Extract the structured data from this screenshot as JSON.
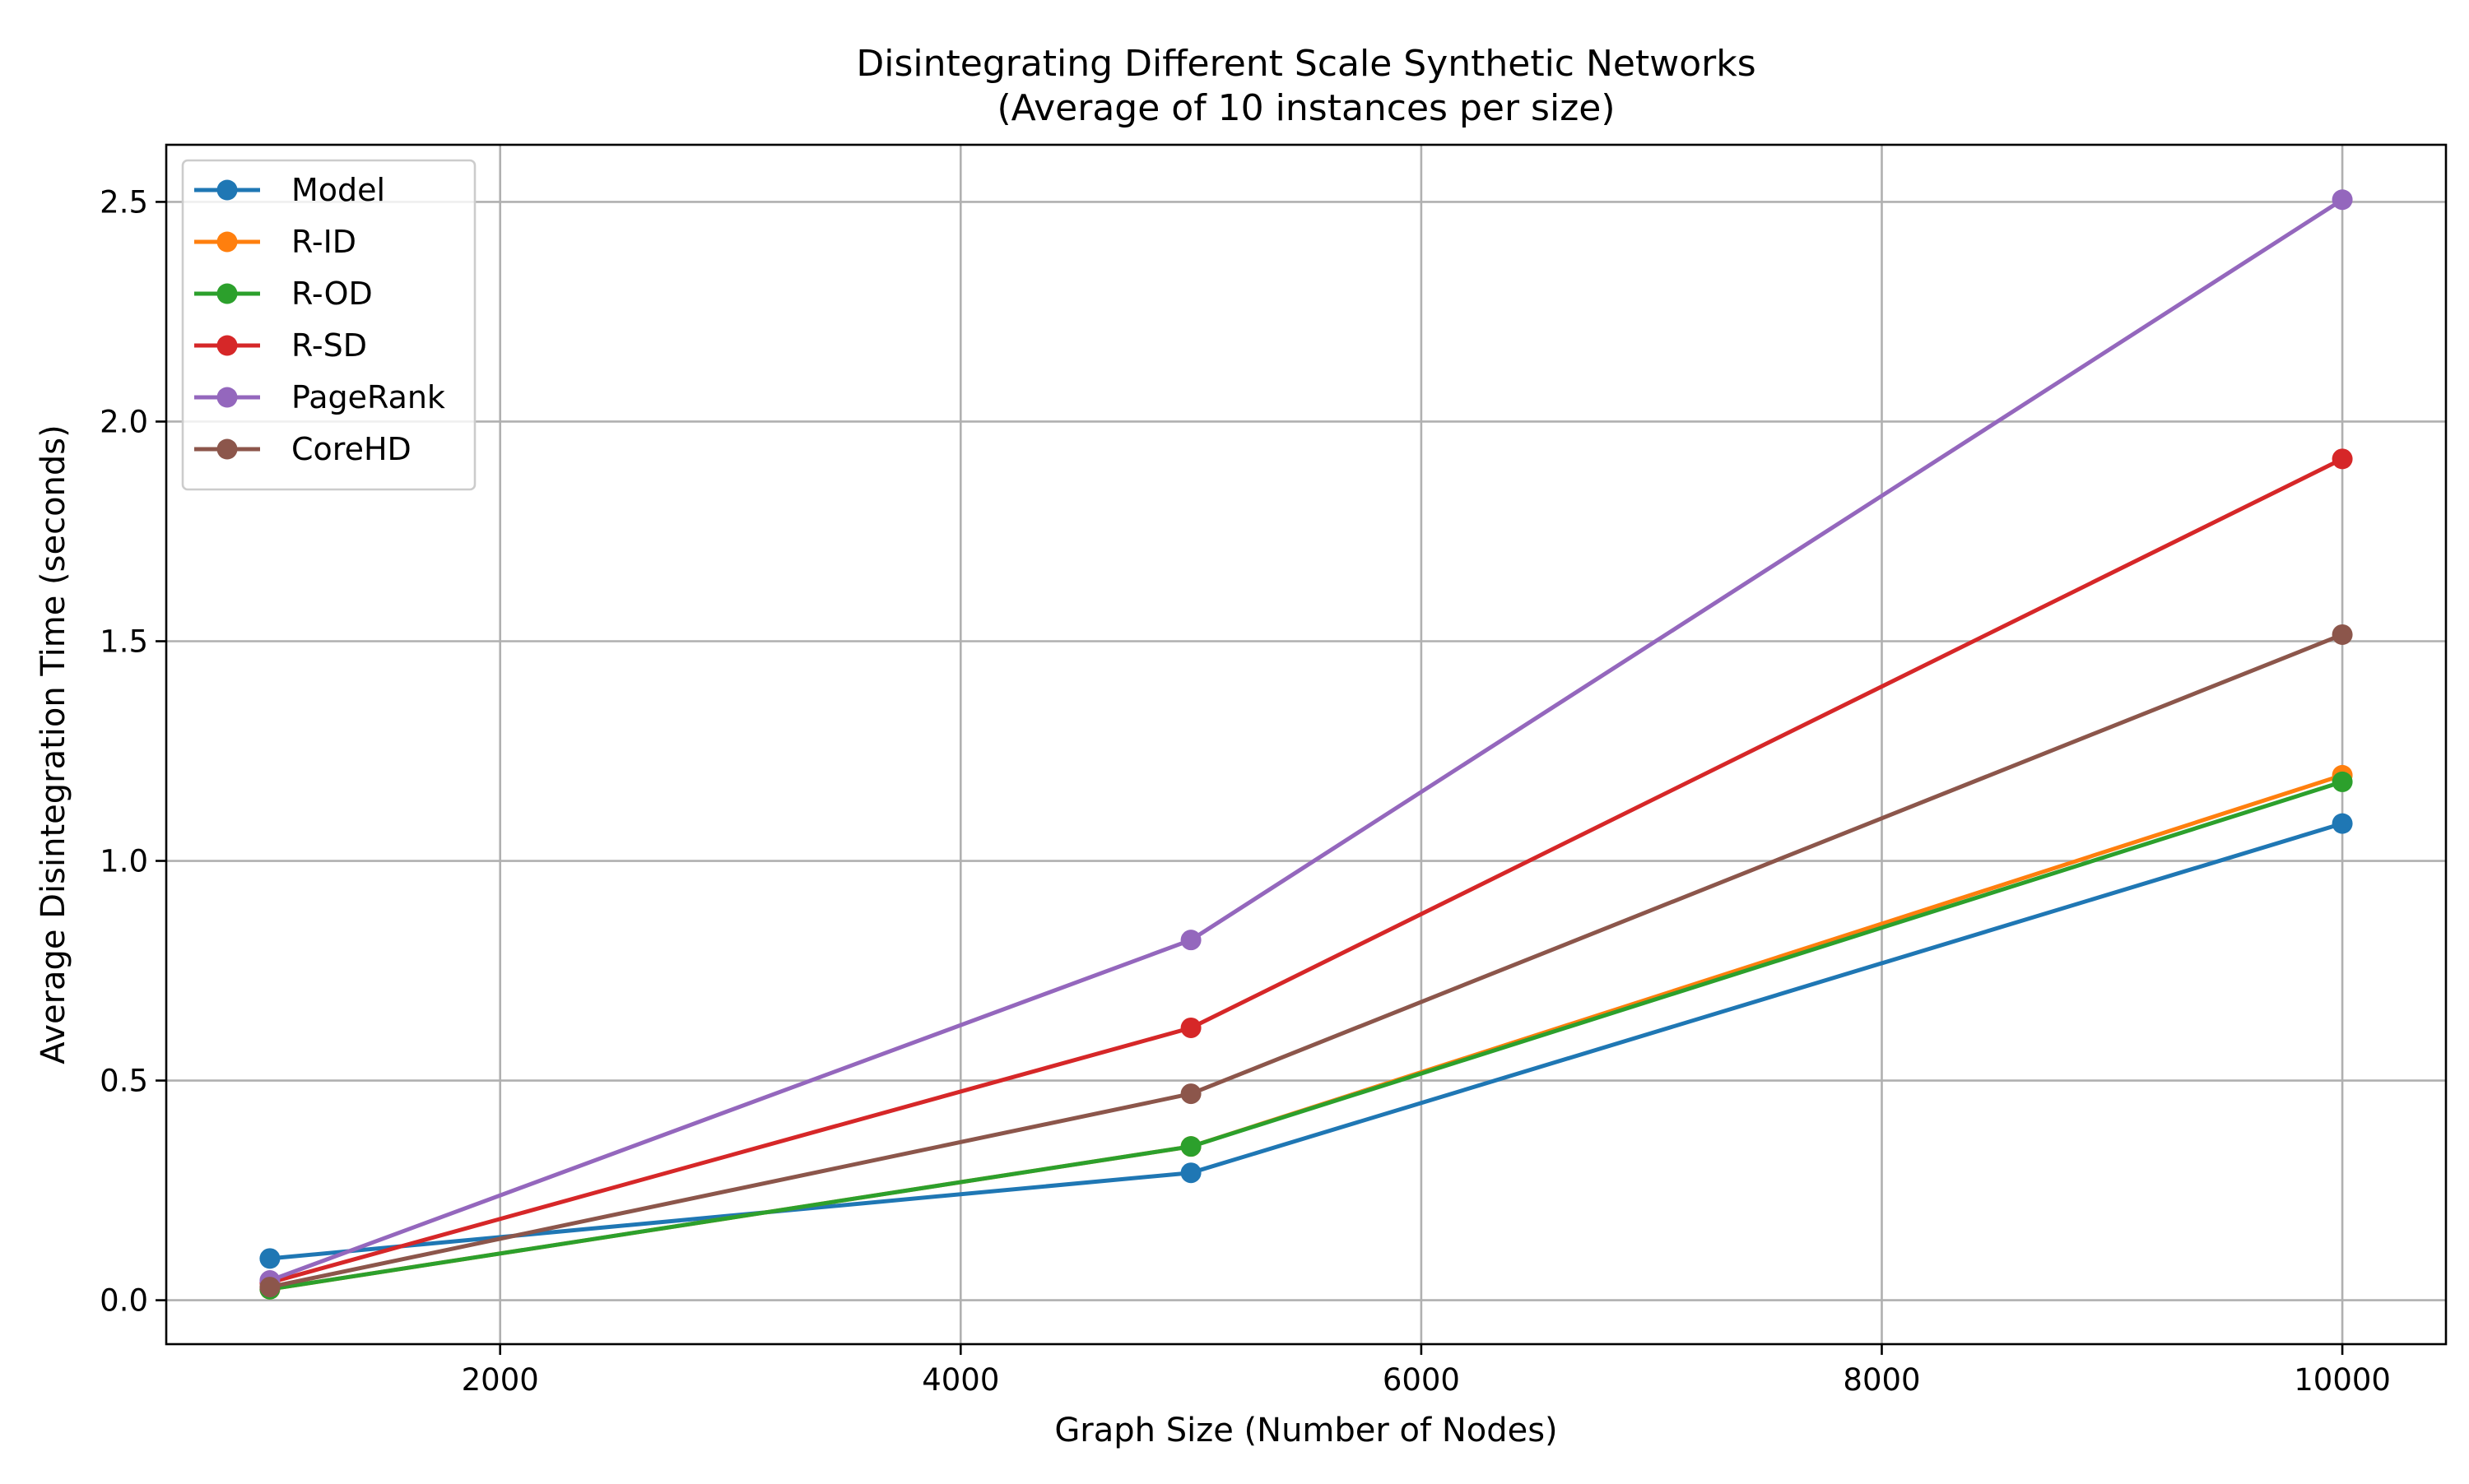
{
  "chart_data": {
    "type": "line",
    "title": "Disintegrating Different Scale Synthetic Networks",
    "subtitle": "(Average of 10 instances per size)",
    "xlabel": "Graph Size (Number of Nodes)",
    "ylabel": "Average Disintegration Time (seconds)",
    "x": [
      1000,
      5000,
      10000
    ],
    "xlim": [
      550,
      10450
    ],
    "ylim": [
      -0.1,
      2.63
    ],
    "xticks": [
      2000,
      4000,
      6000,
      8000,
      10000
    ],
    "yticks": [
      0.0,
      0.5,
      1.0,
      1.5,
      2.0,
      2.5
    ],
    "xtick_labels": [
      "2000",
      "4000",
      "6000",
      "8000",
      "10000"
    ],
    "ytick_labels": [
      "0.0",
      "0.5",
      "1.0",
      "1.5",
      "2.0",
      "2.5"
    ],
    "grid": true,
    "legend_position": "top-left",
    "series": [
      {
        "name": "Model",
        "color": "#1f77b4",
        "values": [
          0.095,
          0.29,
          1.085
        ]
      },
      {
        "name": "R-ID",
        "color": "#ff7f0e",
        "values": [
          0.025,
          0.35,
          1.195
        ]
      },
      {
        "name": "R-OD",
        "color": "#2ca02c",
        "values": [
          0.025,
          0.35,
          1.18
        ]
      },
      {
        "name": "R-SD",
        "color": "#d62728",
        "values": [
          0.04,
          0.62,
          1.915
        ]
      },
      {
        "name": "PageRank",
        "color": "#9467bd",
        "values": [
          0.045,
          0.82,
          2.505
        ]
      },
      {
        "name": "CoreHD",
        "color": "#8c564b",
        "values": [
          0.03,
          0.47,
          1.515
        ]
      }
    ]
  }
}
